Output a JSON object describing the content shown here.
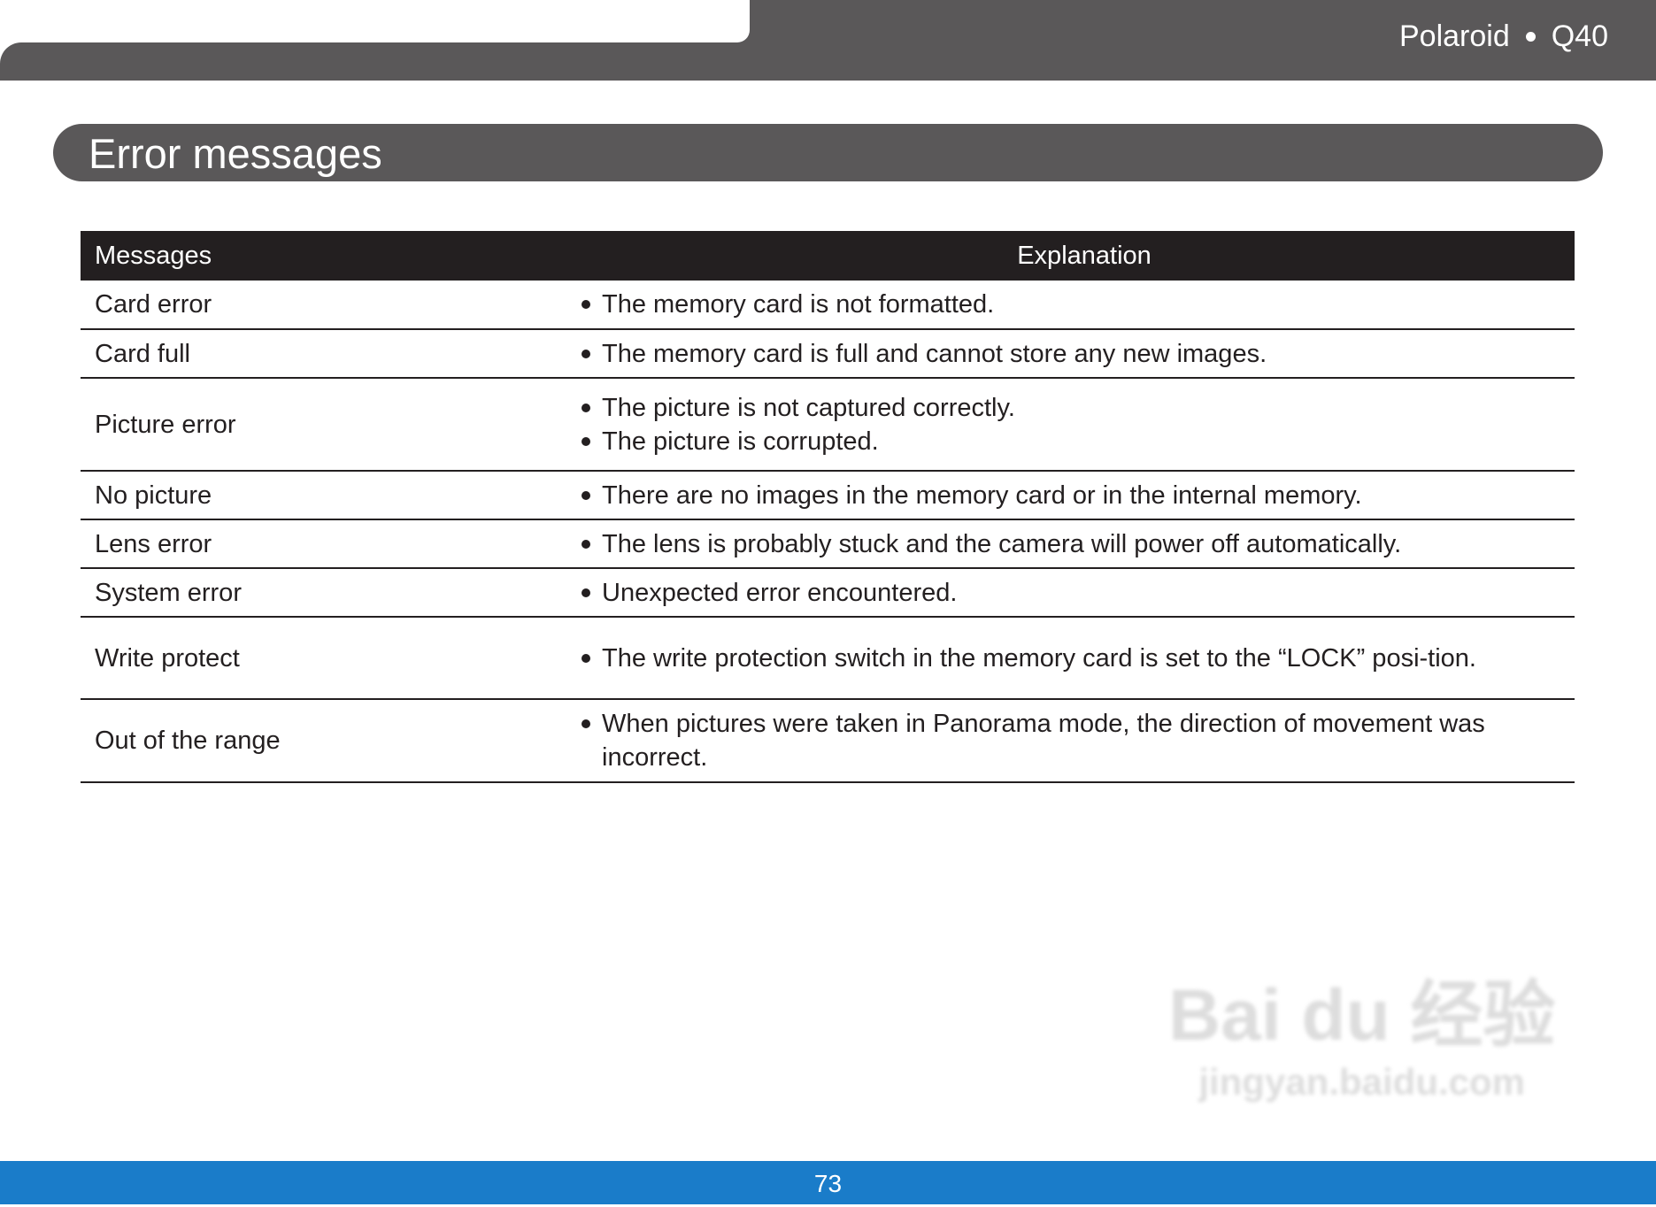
{
  "header": {
    "brand": "Polaroid",
    "model": "Q40"
  },
  "section": {
    "title": "Error messages"
  },
  "table": {
    "columns": [
      "Messages",
      "Explanation"
    ],
    "rows": [
      {
        "message": "Card error",
        "explanation": [
          "The memory card is not formatted."
        ]
      },
      {
        "message": "Card full",
        "explanation": [
          "The memory card is full and cannot store any new images."
        ]
      },
      {
        "message": "Picture error",
        "explanation": [
          "The picture is not captured correctly.",
          "The picture is corrupted."
        ]
      },
      {
        "message": "No picture",
        "explanation": [
          "There are no images in the memory card or in the internal memory."
        ]
      },
      {
        "message": "Lens error",
        "explanation": [
          "The lens is probably stuck and the camera will power off automatically."
        ]
      },
      {
        "message": "System error",
        "explanation": [
          "Unexpected error encountered."
        ]
      },
      {
        "message": "Write protect",
        "explanation": [
          "The write protection switch in the memory card is set to the “LOCK” posi-tion."
        ]
      },
      {
        "message": "Out of the range",
        "explanation": [
          "When pictures were taken in Panorama mode, the direction of movement was incorrect."
        ]
      }
    ]
  },
  "watermark": {
    "brand": "Bai du 经验",
    "url": "jingyan.baidu.com"
  },
  "footer": {
    "page": "73"
  }
}
